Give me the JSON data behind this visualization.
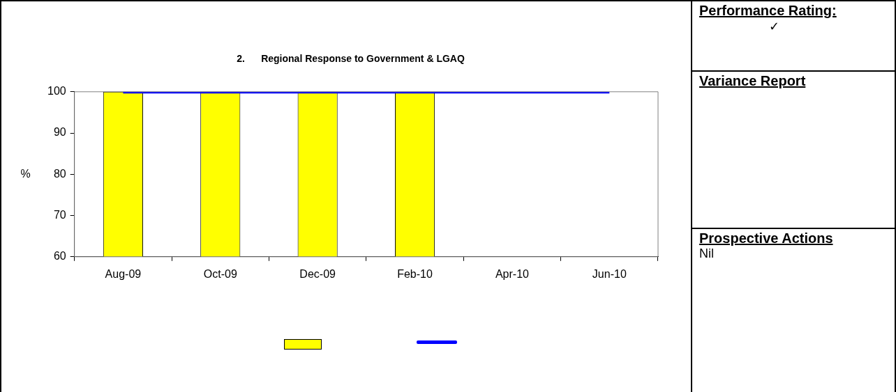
{
  "chart_data": {
    "type": "bar",
    "title": "2.      Regional Response to Government & LGAQ",
    "ylabel": "%",
    "categories": [
      "Aug-09",
      "Oct-09",
      "Dec-09",
      "Feb-10",
      "Apr-10",
      "Jun-10"
    ],
    "series": [
      {
        "color": "#ffff00",
        "values": [
          100,
          100,
          100,
          100,
          null,
          null
        ]
      },
      {
        "type": "line",
        "color": "#0000ff",
        "values": [
          100,
          100,
          100,
          100,
          100,
          100
        ]
      }
    ],
    "ylim": [
      60,
      100
    ],
    "yticks": [
      60,
      70,
      80,
      90,
      100
    ],
    "grid": false,
    "marker": "none",
    "line_style": "solid",
    "annotations": [
      "Performance Rating:",
      "✓",
      "Variance Report",
      "Prospective Actions",
      "Nil"
    ]
  }
}
